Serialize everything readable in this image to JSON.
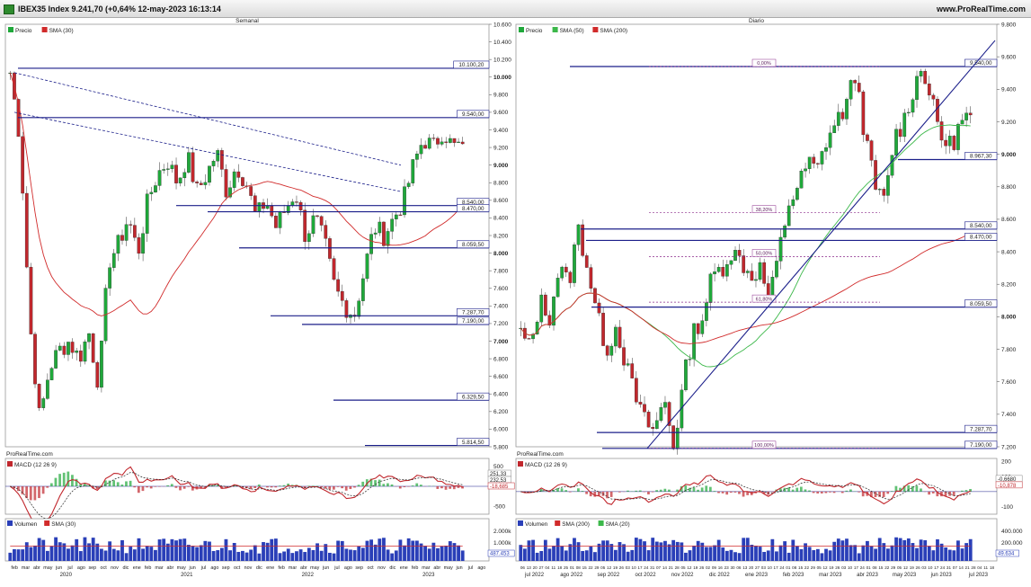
{
  "header": {
    "title": "IBEX35 Index 9.241,70 (+0,64% 12-may-2023 16:13:14",
    "site": "www.ProRealTime.com"
  },
  "colors": {
    "up": "#1fa83a",
    "down": "#c1272d",
    "sma_red": "#d12b2b",
    "sma_green": "#3cb84a",
    "level": "#1b1f8a",
    "fib": "#8b2a8b",
    "macd": "#c1272d",
    "vol": "#2a3fb8"
  },
  "chart_data": [
    {
      "id": "weekly",
      "type": "candlestick",
      "title": "Semanal",
      "legend": [
        "Precio",
        "SMA (30)"
      ],
      "ylim": [
        5800,
        10600
      ],
      "ytick_values": [
        5800,
        6000,
        6200,
        6400,
        6600,
        6800,
        7000,
        7200,
        7400,
        7600,
        7800,
        8000,
        8200,
        8400,
        8600,
        8800,
        9000,
        9200,
        9400,
        9600,
        9800,
        10000,
        10200,
        10400,
        10600
      ],
      "ytick_labels": [
        "5.800",
        "6.000",
        "6.200",
        "6.400",
        "6.600",
        "6.800",
        "7.000",
        "7.200",
        "7.400",
        "7.600",
        "7.800",
        "8.000",
        "8.200",
        "8.400",
        "8.600",
        "8.800",
        "9.000",
        "9.200",
        "9.400",
        "9.600",
        "9.800",
        "10.000",
        "10.200",
        "10.400",
        "10.600"
      ],
      "bold_ticks": [
        7000,
        8000,
        9000,
        10000
      ],
      "x_labels": [
        "feb",
        "mar",
        "abr",
        "may",
        "jun",
        "jul",
        "ago",
        "sep",
        "oct",
        "nov",
        "dic",
        "ene",
        "feb",
        "mar",
        "abr",
        "may",
        "jun",
        "jul",
        "ago",
        "sep",
        "oct",
        "nov",
        "dic",
        "ene",
        "feb",
        "mar",
        "abr",
        "may",
        "jun",
        "jul",
        "ago",
        "sep",
        "oct",
        "nov",
        "dic",
        "ene",
        "feb",
        "mar",
        "abr",
        "may",
        "jun",
        "jul",
        "ago"
      ],
      "x_years": [
        "2020",
        "2021",
        "2022",
        "2023"
      ],
      "price_levels": [
        10100.2,
        9540.0,
        8540.0,
        8470.0,
        8059.5,
        7287.7,
        7190.0,
        6329.5,
        5814.5
      ],
      "price_level_labels": [
        "10.100,20",
        "9.540,00",
        "8.540,00",
        "8.470,00",
        "8.059,50",
        "7.287,70",
        "7.190,00",
        "6.329,50",
        "5.814,50"
      ],
      "last_close": 9241.7,
      "path": [
        10050,
        9300,
        7200,
        6100,
        6700,
        6900,
        7000,
        6800,
        7100,
        6500,
        7900,
        8100,
        8400,
        8000,
        8600,
        8900,
        9050,
        8800,
        9100,
        8700,
        8900,
        9150,
        8700,
        9000,
        8800,
        8400,
        8600,
        8300,
        8500,
        8700,
        8200,
        8400,
        8100,
        7600,
        7400,
        7300,
        7800,
        8300,
        8200,
        8400,
        8600,
        9000,
        9300,
        9200,
        9400,
        9200,
        9241.7
      ]
    },
    {
      "id": "daily",
      "type": "candlestick",
      "title": "Diario",
      "legend": [
        "Precio",
        "SMA (50)",
        "SMA (200)"
      ],
      "ylim": [
        7200,
        9800
      ],
      "ytick_values": [
        7200,
        7400,
        7600,
        7800,
        8000,
        8200,
        8400,
        8600,
        8800,
        9000,
        9200,
        9400,
        9600,
        9800
      ],
      "ytick_labels": [
        "7.200",
        "7.400",
        "7.600",
        "7.800",
        "8.000",
        "8.200",
        "8.400",
        "8.600",
        "8.800",
        "9.000",
        "9.200",
        "9.400",
        "9.600",
        "9.800"
      ],
      "bold_ticks": [
        8000,
        9000
      ],
      "x_labels": [
        "06",
        "13",
        "20",
        "27",
        "04",
        "11",
        "18",
        "25",
        "01",
        "08",
        "15",
        "22",
        "29",
        "05",
        "12",
        "19",
        "26",
        "03",
        "10",
        "17",
        "24",
        "31",
        "07",
        "14",
        "21",
        "28",
        "05",
        "12",
        "19",
        "26",
        "02",
        "09",
        "16",
        "23",
        "30",
        "06",
        "13",
        "20",
        "27",
        "03",
        "10",
        "17",
        "24",
        "01",
        "08",
        "15",
        "22",
        "29",
        "05",
        "12",
        "19",
        "26",
        "03",
        "10",
        "17",
        "24",
        "01",
        "08",
        "15",
        "22",
        "29",
        "05",
        "12",
        "19",
        "26",
        "03",
        "10",
        "17",
        "24",
        "31",
        "07",
        "14",
        "21",
        "28",
        "04",
        "11",
        "18"
      ],
      "x_months": [
        "jul 2022",
        "ago 2022",
        "sep 2022",
        "oct 2022",
        "nov 2022",
        "dic 2022",
        "ene 2023",
        "feb 2023",
        "mar 2023",
        "abr 2023",
        "may 2023",
        "jun 2023",
        "jul 2023"
      ],
      "price_levels": [
        9540.0,
        8967.3,
        8540.0,
        8470.0,
        8059.5,
        7287.7,
        7190.0
      ],
      "price_level_labels": [
        "9.540,00",
        "8.967,30",
        "8.540,00",
        "8.470,00",
        "8.059,50",
        "7.287,70",
        "7.190,00"
      ],
      "fib_levels": [
        9540,
        8640,
        8370,
        8090,
        7190
      ],
      "fib_labels": [
        "0,00%",
        "38,20%",
        "50,00%",
        "61,80%",
        "100,00%"
      ],
      "last_close": 9241.7,
      "path": [
        7900,
        7800,
        8100,
        8000,
        8300,
        8200,
        8550,
        8300,
        8000,
        7800,
        7950,
        7700,
        7500,
        7350,
        7300,
        7500,
        7200,
        7600,
        7900,
        8000,
        8250,
        8300,
        8400,
        8350,
        8250,
        8300,
        8100,
        8400,
        8700,
        8800,
        8950,
        8900,
        9100,
        9200,
        9300,
        9500,
        9100,
        8800,
        8700,
        9100,
        9200,
        9400,
        9550,
        9300,
        9100,
        9050,
        9200,
        9241.7
      ]
    },
    {
      "id": "weekly_macd",
      "type": "line",
      "title": "ProRealTime.com",
      "legend": [
        "MACD (12 26 9)"
      ],
      "ylim": [
        -700,
        700
      ],
      "ytick_values": [
        500,
        -500
      ],
      "ytick_labels": [
        "500",
        "-500"
      ],
      "value_labels": [
        "251,33",
        "232,53",
        "-18,685"
      ]
    },
    {
      "id": "daily_macd",
      "type": "line",
      "title": "ProRealTime.com",
      "legend": [
        "MACD (12 26 9)"
      ],
      "ylim": [
        -150,
        220
      ],
      "ytick_values": [
        200,
        100,
        -100
      ],
      "ytick_labels": [
        "200",
        "100",
        "-100"
      ],
      "value_labels": [
        "-0,6680",
        "-10,878"
      ]
    },
    {
      "id": "weekly_volume",
      "type": "bar",
      "legend": [
        "Volumen",
        "SMA (30)"
      ],
      "ytick_labels": [
        "2.000k",
        "1.000k"
      ],
      "value_labels": [
        "487.453"
      ]
    },
    {
      "id": "daily_volume",
      "type": "bar",
      "legend": [
        "Volumen",
        "SMA (200)",
        "SMA (20)"
      ],
      "ytick_labels": [
        "400.000",
        "200.000"
      ],
      "value_labels": [
        "49.634"
      ]
    }
  ]
}
